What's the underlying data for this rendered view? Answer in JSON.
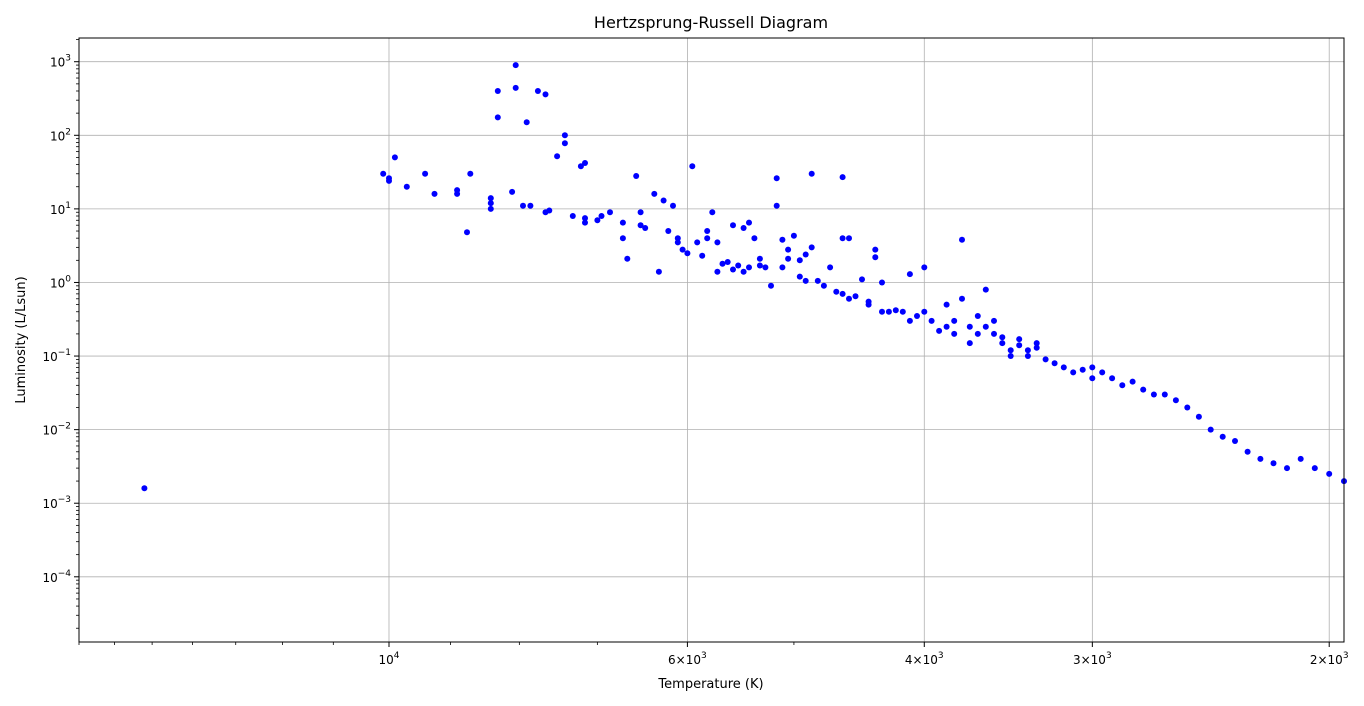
{
  "chart_data": {
    "type": "scatter",
    "title": "Hertzsprung-Russell Diagram",
    "xlabel": "Temperature (K)",
    "ylabel": "Luminosity (L/Lsun)",
    "x_scale": "log",
    "y_scale": "log",
    "x_inverted": true,
    "xlim": [
      17000,
      1950
    ],
    "ylim": [
      1.3e-05,
      2100
    ],
    "grid": true,
    "marker_color": "#0000ff",
    "x_ticks": [
      {
        "value": 10000,
        "mantissa": "",
        "exponent": "4"
      },
      {
        "value": 6000,
        "mantissa": "6×",
        "exponent": "3"
      },
      {
        "value": 4000,
        "mantissa": "4×",
        "exponent": "3"
      },
      {
        "value": 3000,
        "mantissa": "3×",
        "exponent": "3"
      },
      {
        "value": 2000,
        "mantissa": "2×",
        "exponent": "3"
      }
    ],
    "y_ticks": [
      {
        "value": 0.0001,
        "exponent": "−4"
      },
      {
        "value": 0.001,
        "exponent": "−3"
      },
      {
        "value": 0.01,
        "exponent": "−2"
      },
      {
        "value": 0.1,
        "exponent": "−1"
      },
      {
        "value": 1,
        "exponent": "0"
      },
      {
        "value": 10,
        "exponent": "1"
      },
      {
        "value": 100,
        "exponent": "2"
      },
      {
        "value": 1000,
        "exponent": "3"
      }
    ],
    "points": [
      [
        15200,
        0.0016
      ],
      [
        8300,
        400
      ],
      [
        8300,
        175
      ],
      [
        8050,
        900
      ],
      [
        8050,
        440
      ],
      [
        7900,
        150
      ],
      [
        7750,
        400
      ],
      [
        7650,
        360
      ],
      [
        7500,
        52
      ],
      [
        7400,
        100
      ],
      [
        7400,
        78
      ],
      [
        7200,
        38
      ],
      [
        7150,
        42
      ],
      [
        10100,
        30
      ],
      [
        10000,
        26
      ],
      [
        10000,
        24
      ],
      [
        9900,
        50
      ],
      [
        9700,
        20
      ],
      [
        9400,
        30
      ],
      [
        9250,
        16
      ],
      [
        8900,
        18
      ],
      [
        8900,
        16
      ],
      [
        8700,
        30
      ],
      [
        8750,
        4.8
      ],
      [
        8400,
        14
      ],
      [
        8400,
        12
      ],
      [
        8400,
        10
      ],
      [
        8100,
        17
      ],
      [
        7950,
        11
      ],
      [
        7850,
        11
      ],
      [
        7650,
        9
      ],
      [
        7600,
        9.5
      ],
      [
        7300,
        8
      ],
      [
        7150,
        6.5
      ],
      [
        7150,
        7.5
      ],
      [
        6950,
        8
      ],
      [
        7000,
        7
      ],
      [
        6850,
        9
      ],
      [
        6700,
        6.5
      ],
      [
        6700,
        4
      ],
      [
        6650,
        2.1
      ],
      [
        6550,
        28
      ],
      [
        6500,
        9
      ],
      [
        6500,
        6
      ],
      [
        6450,
        5.5
      ],
      [
        6350,
        16
      ],
      [
        6250,
        13
      ],
      [
        6300,
        1.4
      ],
      [
        6200,
        5
      ],
      [
        6150,
        11
      ],
      [
        6100,
        3.5
      ],
      [
        6100,
        4
      ],
      [
        6050,
        2.8
      ],
      [
        6000,
        2.5
      ],
      [
        5950,
        38
      ],
      [
        5900,
        3.5
      ],
      [
        5850,
        2.3
      ],
      [
        5800,
        4
      ],
      [
        5800,
        5
      ],
      [
        5750,
        9
      ],
      [
        5700,
        3.5
      ],
      [
        5700,
        1.4
      ],
      [
        5650,
        1.8
      ],
      [
        5600,
        1.9
      ],
      [
        5550,
        6
      ],
      [
        5550,
        1.5
      ],
      [
        5500,
        1.7
      ],
      [
        5450,
        5.5
      ],
      [
        5450,
        1.4
      ],
      [
        5400,
        6.5
      ],
      [
        5400,
        1.6
      ],
      [
        5350,
        4
      ],
      [
        5300,
        2.1
      ],
      [
        5300,
        1.7
      ],
      [
        5250,
        1.6
      ],
      [
        5200,
        0.9
      ],
      [
        5150,
        26
      ],
      [
        5150,
        11
      ],
      [
        5100,
        3.8
      ],
      [
        5100,
        1.6
      ],
      [
        5050,
        2.8
      ],
      [
        5050,
        2.1
      ],
      [
        5000,
        4.3
      ],
      [
        4950,
        1.2
      ],
      [
        4950,
        2
      ],
      [
        4900,
        2.4
      ],
      [
        4900,
        1.05
      ],
      [
        4850,
        30
      ],
      [
        4850,
        3
      ],
      [
        4800,
        1.05
      ],
      [
        4750,
        0.9
      ],
      [
        4700,
        1.6
      ],
      [
        4650,
        0.75
      ],
      [
        4600,
        27
      ],
      [
        4600,
        4
      ],
      [
        4600,
        0.7
      ],
      [
        4550,
        0.6
      ],
      [
        4550,
        4
      ],
      [
        4500,
        0.65
      ],
      [
        4450,
        1.1
      ],
      [
        4400,
        0.5
      ],
      [
        4400,
        0.55
      ],
      [
        4350,
        2.8
      ],
      [
        4350,
        2.2
      ],
      [
        4300,
        0.4
      ],
      [
        4300,
        1
      ],
      [
        4250,
        0.4
      ],
      [
        4200,
        0.42
      ],
      [
        4150,
        0.4
      ],
      [
        4100,
        1.3
      ],
      [
        4100,
        0.3
      ],
      [
        4050,
        0.35
      ],
      [
        4000,
        0.4
      ],
      [
        4000,
        1.6
      ],
      [
        3950,
        0.3
      ],
      [
        3900,
        0.22
      ],
      [
        3850,
        0.25
      ],
      [
        3850,
        0.5
      ],
      [
        3800,
        0.2
      ],
      [
        3800,
        0.3
      ],
      [
        3750,
        0.6
      ],
      [
        3750,
        3.8
      ],
      [
        3700,
        0.25
      ],
      [
        3700,
        0.15
      ],
      [
        3650,
        0.2
      ],
      [
        3650,
        0.35
      ],
      [
        3600,
        0.25
      ],
      [
        3600,
        0.8
      ],
      [
        3550,
        0.2
      ],
      [
        3550,
        0.3
      ],
      [
        3500,
        0.18
      ],
      [
        3500,
        0.15
      ],
      [
        3450,
        0.1
      ],
      [
        3450,
        0.12
      ],
      [
        3400,
        0.14
      ],
      [
        3400,
        0.17
      ],
      [
        3350,
        0.1
      ],
      [
        3350,
        0.12
      ],
      [
        3300,
        0.13
      ],
      [
        3300,
        0.15
      ],
      [
        3250,
        0.09
      ],
      [
        3200,
        0.08
      ],
      [
        3150,
        0.07
      ],
      [
        3100,
        0.06
      ],
      [
        3050,
        0.065
      ],
      [
        3000,
        0.07
      ],
      [
        3000,
        0.05
      ],
      [
        2950,
        0.06
      ],
      [
        2900,
        0.05
      ],
      [
        2850,
        0.04
      ],
      [
        2800,
        0.045
      ],
      [
        2750,
        0.035
      ],
      [
        2700,
        0.03
      ],
      [
        2650,
        0.03
      ],
      [
        2600,
        0.025
      ],
      [
        2550,
        0.02
      ],
      [
        2500,
        0.015
      ],
      [
        2450,
        0.01
      ],
      [
        2400,
        0.008
      ],
      [
        2350,
        0.007
      ],
      [
        2300,
        0.005
      ],
      [
        2250,
        0.004
      ],
      [
        2200,
        0.0035
      ],
      [
        2150,
        0.003
      ],
      [
        2100,
        0.004
      ],
      [
        2050,
        0.003
      ],
      [
        2000,
        0.0025
      ],
      [
        1950,
        0.002
      ]
    ]
  }
}
